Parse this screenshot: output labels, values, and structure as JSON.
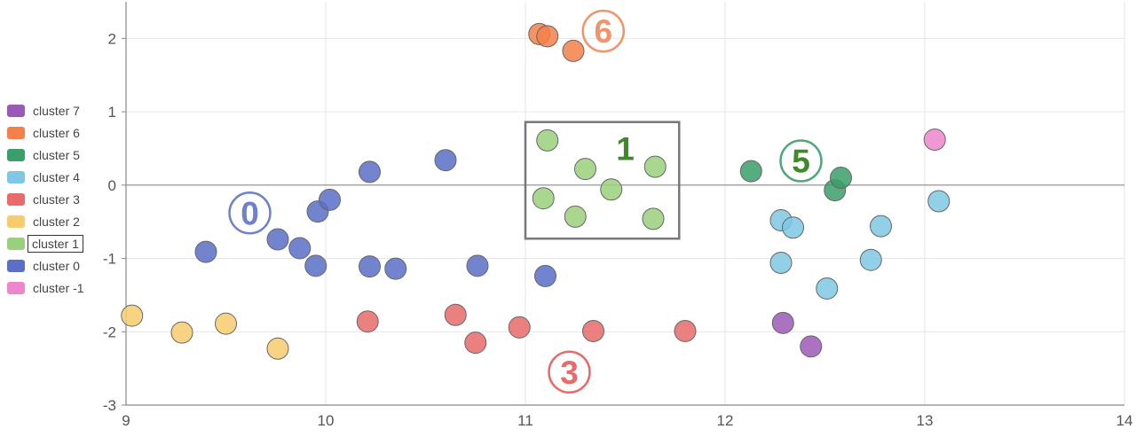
{
  "chart_data": {
    "type": "scatter",
    "xlim": [
      9,
      14
    ],
    "ylim": [
      -3,
      2.5
    ],
    "x_ticks": [
      "9",
      "10",
      "11",
      "12",
      "13",
      "14"
    ],
    "y_ticks": [
      "-3",
      "-2",
      "-1",
      "0",
      "1",
      "2"
    ],
    "grid": true,
    "legend_position": "left",
    "series": [
      {
        "name": "cluster 7",
        "color": "#9b59b6",
        "points": [
          [
            12.29,
            -1.88
          ],
          [
            12.43,
            -2.2
          ]
        ]
      },
      {
        "name": "cluster 6",
        "color": "#f5804a",
        "points": [
          [
            11.07,
            2.06
          ],
          [
            11.11,
            2.03
          ],
          [
            11.24,
            1.83
          ]
        ]
      },
      {
        "name": "cluster 5",
        "color": "#3a9f6a",
        "points": [
          [
            12.13,
            0.19
          ],
          [
            12.55,
            -0.07
          ],
          [
            12.58,
            0.1
          ]
        ]
      },
      {
        "name": "cluster 4",
        "color": "#7ec8e3",
        "points": [
          [
            12.28,
            -0.48
          ],
          [
            12.34,
            -0.58
          ],
          [
            12.28,
            -1.06
          ],
          [
            12.51,
            -1.41
          ],
          [
            12.73,
            -1.02
          ],
          [
            12.78,
            -0.56
          ],
          [
            13.07,
            -0.22
          ]
        ]
      },
      {
        "name": "cluster 3",
        "color": "#e86a6a",
        "points": [
          [
            10.21,
            -1.86
          ],
          [
            10.65,
            -1.77
          ],
          [
            10.75,
            -2.15
          ],
          [
            10.97,
            -1.94
          ],
          [
            11.34,
            -1.99
          ],
          [
            11.8,
            -1.99
          ]
        ]
      },
      {
        "name": "cluster 2",
        "color": "#f7cb6e",
        "points": [
          [
            9.03,
            -1.78
          ],
          [
            9.28,
            -2.01
          ],
          [
            9.5,
            -1.89
          ],
          [
            9.76,
            -2.23
          ]
        ]
      },
      {
        "name": "cluster 1",
        "color": "#9ad07d",
        "points": [
          [
            11.11,
            0.61
          ],
          [
            11.3,
            0.22
          ],
          [
            11.65,
            0.25
          ],
          [
            11.43,
            -0.06
          ],
          [
            11.09,
            -0.18
          ],
          [
            11.25,
            -0.43
          ],
          [
            11.64,
            -0.46
          ]
        ]
      },
      {
        "name": "cluster 0",
        "color": "#5b6fc7",
        "points": [
          [
            9.4,
            -0.91
          ],
          [
            9.76,
            -0.74
          ],
          [
            9.87,
            -0.86
          ],
          [
            9.96,
            -0.36
          ],
          [
            10.02,
            -0.2
          ],
          [
            9.95,
            -1.1
          ],
          [
            10.22,
            0.18
          ],
          [
            10.22,
            -1.11
          ],
          [
            10.35,
            -1.14
          ],
          [
            10.6,
            0.34
          ],
          [
            10.76,
            -1.1
          ],
          [
            11.1,
            -1.24
          ]
        ]
      },
      {
        "name": "cluster -1",
        "color": "#ee86cc",
        "points": [
          [
            13.05,
            0.62
          ]
        ]
      }
    ],
    "selected_series": "cluster 1",
    "annotations": [
      {
        "text": "0",
        "x": 9.62,
        "y": -0.38,
        "color": "#6e82cc",
        "circled": true
      },
      {
        "text": "6",
        "x": 11.39,
        "y": 2.1,
        "color": "#f0946a",
        "circled": true
      },
      {
        "text": "1",
        "x": 11.5,
        "y": 0.5,
        "color": "#3e8a2a",
        "circled": false
      },
      {
        "text": "5",
        "x": 12.38,
        "y": 0.33,
        "color": "#3e8a2a",
        "ring_color": "#52a67a",
        "circled": true
      },
      {
        "text": "3",
        "x": 11.22,
        "y": -2.55,
        "color": "#e86a6a",
        "circled": true
      }
    ],
    "highlight_box": {
      "x0": 11.0,
      "x1": 11.77,
      "y0": -0.73,
      "y1": 0.86,
      "color": "#777777"
    }
  }
}
